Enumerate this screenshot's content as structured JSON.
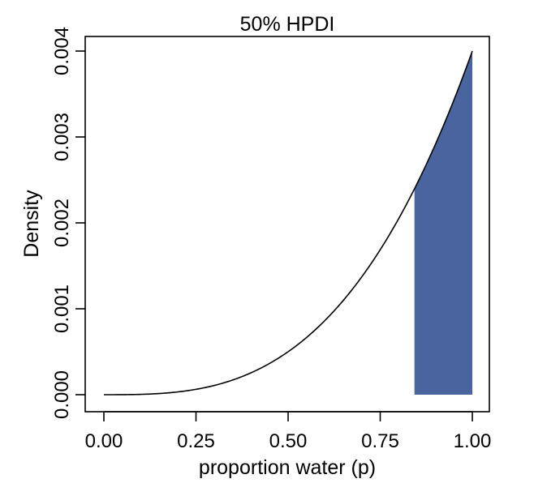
{
  "chart_data": {
    "type": "area",
    "title": "50% HPDI",
    "xlabel": "proportion water (p)",
    "ylabel": "Density",
    "xlim": [
      0,
      1
    ],
    "ylim": [
      0,
      0.004
    ],
    "x_ticks": [
      "0.00",
      "0.25",
      "0.50",
      "0.75",
      "1.00"
    ],
    "y_ticks": [
      "0.000",
      "0.001",
      "0.002",
      "0.003",
      "0.004"
    ],
    "grid": false,
    "curve": {
      "x": [
        0.0,
        0.1,
        0.2,
        0.3,
        0.4,
        0.5,
        0.6,
        0.7,
        0.8,
        0.85,
        0.9,
        1.0
      ],
      "y": [
        0.0,
        4e-06,
        3.2e-05,
        0.000108,
        0.000256,
        0.0005,
        0.000864,
        0.001372,
        0.002048,
        0.002457,
        0.002916,
        0.004
      ]
    },
    "shaded_interval": {
      "x_low": 0.843,
      "x_high": 1.0,
      "color": "#4a64a0"
    },
    "line_color": "#000000"
  }
}
